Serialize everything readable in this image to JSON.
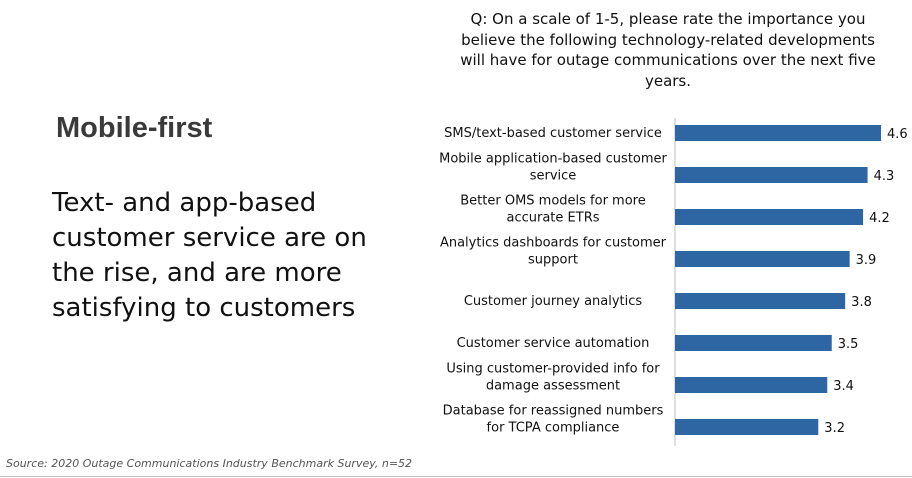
{
  "slide": {
    "heading": "Mobile-first",
    "subtext": "Text- and app-based customer service are on the rise, and are more satisfying to customers",
    "source": "Source: 2020 Outage Communications Industry Benchmark Survey, n=52"
  },
  "chart_data": {
    "type": "bar",
    "orientation": "horizontal",
    "title": "Q: On a scale of 1-5, please rate the importance you believe the following technology-related developments will have for outage communications over the next five years.",
    "categories": [
      "SMS/text-based customer service",
      "Mobile application-based customer service",
      "Better OMS models for more accurate ETRs",
      "Analytics dashboards for customer support",
      "Customer journey analytics",
      "Customer service automation",
      "Using customer-provided info for damage assessment",
      "Database for reassigned numbers for TCPA compliance"
    ],
    "category_lines": [
      [
        "SMS/text-based customer service"
      ],
      [
        "Mobile application-based customer",
        "service"
      ],
      [
        "Better OMS models for more",
        "accurate ETRs"
      ],
      [
        "Analytics dashboards for customer",
        "support"
      ],
      [
        "Customer journey analytics"
      ],
      [
        "Customer service automation"
      ],
      [
        "Using customer-provided info for",
        "damage assessment"
      ],
      [
        "Database for reassigned numbers",
        "for TCPA compliance"
      ]
    ],
    "values": [
      4.6,
      4.3,
      4.2,
      3.9,
      3.8,
      3.5,
      3.4,
      3.2
    ],
    "value_labels": [
      "4.6",
      "4.3",
      "4.2",
      "3.9",
      "3.8",
      "3.5",
      "3.4",
      "3.2"
    ],
    "xlim": [
      0,
      4.6
    ],
    "bar_color": "#2e66a3",
    "grid": false,
    "legend": "none"
  }
}
